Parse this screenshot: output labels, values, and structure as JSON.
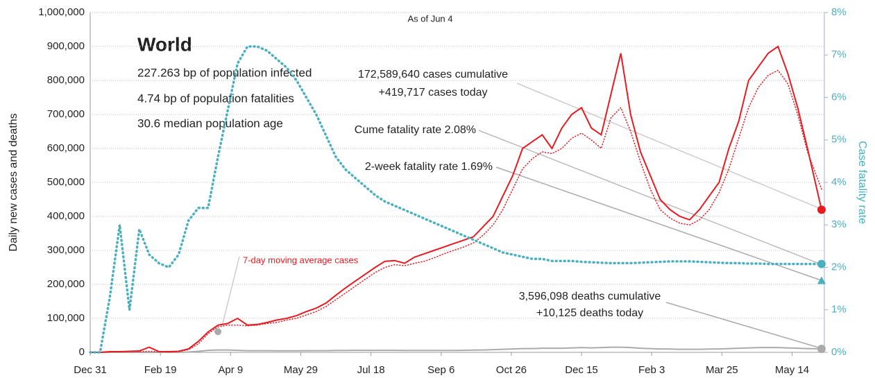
{
  "chart_data": {
    "type": "line",
    "title": "World",
    "subtitle": "As of Jun 4",
    "stats": [
      "227.263 bp of population infected",
      "4.74 bp of population fatalities",
      "30.6 median population age"
    ],
    "y_label": "Daily new cases and deaths",
    "y2_label": "Case fatality rate",
    "xlim": [
      0,
      523
    ],
    "xticks": [
      {
        "value": 0,
        "label": "Dec 31"
      },
      {
        "value": 50,
        "label": "Feb 19"
      },
      {
        "value": 100,
        "label": "Apr 9"
      },
      {
        "value": 150,
        "label": "May 29"
      },
      {
        "value": 200,
        "label": "Jul 18"
      },
      {
        "value": 250,
        "label": "Sep 6"
      },
      {
        "value": 300,
        "label": "Oct 26"
      },
      {
        "value": 350,
        "label": "Dec 15"
      },
      {
        "value": 400,
        "label": "Feb 3"
      },
      {
        "value": 450,
        "label": "Mar 25"
      },
      {
        "value": 500,
        "label": "May 14"
      }
    ],
    "ylim": [
      0,
      1000000
    ],
    "yticks": [
      0,
      {
        "value": 100000,
        "label": "100,000"
      },
      {
        "value": 200000,
        "label": "200,000"
      },
      {
        "value": 300000,
        "label": "300,000"
      },
      {
        "value": 400000,
        "label": "400,000"
      },
      {
        "value": 500000,
        "label": "500,000"
      },
      {
        "value": 600000,
        "label": "600,000"
      },
      {
        "value": 700000,
        "label": "700,000"
      },
      {
        "value": 800000,
        "label": "800,000"
      },
      {
        "value": 900000,
        "label": "900,000"
      },
      {
        "value": 1000000,
        "label": "1,000,000"
      }
    ],
    "y2lim": [
      0,
      8
    ],
    "y2ticks": [
      {
        "value": 0,
        "label": "0%"
      },
      {
        "value": 1,
        "label": "1%"
      },
      {
        "value": 2,
        "label": "2%"
      },
      {
        "value": 3,
        "label": "3%"
      },
      {
        "value": 4,
        "label": "4%"
      },
      {
        "value": 5,
        "label": "5%"
      },
      {
        "value": 6,
        "label": "6%"
      },
      {
        "value": 7,
        "label": "7%"
      },
      {
        "value": 8,
        "label": "8%"
      }
    ],
    "grid": true,
    "x": [
      0,
      7,
      14,
      21,
      28,
      35,
      42,
      49,
      56,
      63,
      70,
      77,
      84,
      91,
      98,
      105,
      112,
      119,
      126,
      133,
      140,
      147,
      154,
      161,
      168,
      175,
      182,
      189,
      196,
      203,
      210,
      217,
      224,
      231,
      238,
      245,
      252,
      259,
      266,
      273,
      280,
      287,
      294,
      301,
      308,
      315,
      322,
      329,
      336,
      343,
      350,
      357,
      364,
      371,
      378,
      385,
      392,
      399,
      406,
      413,
      420,
      427,
      434,
      441,
      448,
      455,
      462,
      469,
      476,
      483,
      490,
      497,
      504,
      511,
      521
    ],
    "series": [
      {
        "color": "#e8191f",
        "style": "solid",
        "values": [
          0,
          0,
          2000,
          2000,
          3000,
          4000,
          15000,
          2000,
          2000,
          3000,
          10000,
          32000,
          60000,
          80000,
          85000,
          100000,
          80000,
          82000,
          88000,
          95000,
          100000,
          108000,
          120000,
          130000,
          145000,
          168000,
          190000,
          210000,
          230000,
          250000,
          268000,
          270000,
          262000,
          280000,
          290000,
          300000,
          310000,
          320000,
          330000,
          340000,
          370000,
          400000,
          460000,
          520000,
          600000,
          620000,
          640000,
          600000,
          660000,
          700000,
          720000,
          660000,
          640000,
          760000,
          880000,
          700000,
          590000,
          520000,
          450000,
          420000,
          400000,
          390000,
          420000,
          460000,
          500000,
          600000,
          680000,
          800000,
          840000,
          880000,
          900000,
          820000,
          720000,
          600000,
          419717
        ]
      },
      {
        "name": "7-day moving average cases",
        "color": "#e8191f",
        "style": "dotted",
        "values": [
          0,
          0,
          1000,
          2000,
          2000,
          2000,
          3000,
          2000,
          1000,
          2000,
          8000,
          25000,
          55000,
          75000,
          80000,
          80000,
          78000,
          80000,
          85000,
          88000,
          95000,
          100000,
          110000,
          120000,
          135000,
          155000,
          175000,
          195000,
          215000,
          235000,
          250000,
          258000,
          255000,
          262000,
          268000,
          278000,
          290000,
          300000,
          310000,
          322000,
          345000,
          375000,
          420000,
          480000,
          540000,
          570000,
          590000,
          585000,
          600000,
          630000,
          645000,
          625000,
          600000,
          690000,
          720000,
          650000,
          560000,
          480000,
          420000,
          395000,
          380000,
          375000,
          390000,
          420000,
          470000,
          540000,
          630000,
          720000,
          780000,
          815000,
          830000,
          790000,
          700000,
          590000,
          480000
        ]
      },
      {
        "color": "#aaaaaa",
        "style": "solid",
        "values": [
          0,
          0,
          0,
          0,
          0,
          0,
          100,
          100,
          100,
          200,
          1000,
          3000,
          6000,
          7000,
          7000,
          6000,
          5000,
          5000,
          5000,
          4500,
          4500,
          4500,
          5000,
          5000,
          5000,
          5500,
          5500,
          6000,
          6000,
          6000,
          6000,
          6000,
          5500,
          5500,
          5500,
          5500,
          5500,
          5500,
          6000,
          6500,
          7000,
          8000,
          9000,
          10000,
          11000,
          11000,
          12000,
          12000,
          12000,
          13000,
          14000,
          13000,
          14000,
          15000,
          15000,
          14000,
          12000,
          11000,
          10000,
          9500,
          9000,
          9000,
          9000,
          9500,
          10000,
          11000,
          12000,
          13000,
          14000,
          14000,
          14000,
          13000,
          12000,
          11000,
          10125
        ]
      },
      {
        "color": "#4ab0c1",
        "style": "dotted",
        "axis": "y2",
        "values": [
          0,
          0,
          1.3,
          3.0,
          1.0,
          2.9,
          2.3,
          2.1,
          2.0,
          2.3,
          3.1,
          3.4,
          3.4,
          4.6,
          5.7,
          6.8,
          7.2,
          7.2,
          7.1,
          6.9,
          6.7,
          6.4,
          6.0,
          5.6,
          5.1,
          4.6,
          4.3,
          4.1,
          3.9,
          3.7,
          3.55,
          3.45,
          3.35,
          3.25,
          3.15,
          3.05,
          2.95,
          2.85,
          2.75,
          2.65,
          2.55,
          2.45,
          2.35,
          2.3,
          2.25,
          2.2,
          2.2,
          2.15,
          2.15,
          2.15,
          2.13,
          2.12,
          2.11,
          2.1,
          2.1,
          2.1,
          2.11,
          2.12,
          2.13,
          2.14,
          2.14,
          2.14,
          2.13,
          2.12,
          2.11,
          2.1,
          2.1,
          2.09,
          2.09,
          2.08,
          2.08,
          2.08,
          2.08,
          2.08,
          2.08
        ]
      }
    ],
    "two_week_fatality_rate": 1.69,
    "annotations": [
      "172,589,640 cases cumulative",
      "+419,717 cases today",
      "Cume fatality rate 2.08%",
      "2-week fatality rate 1.69%",
      "3,596,098 deaths cumulative",
      "+10,125 deaths today"
    ]
  }
}
